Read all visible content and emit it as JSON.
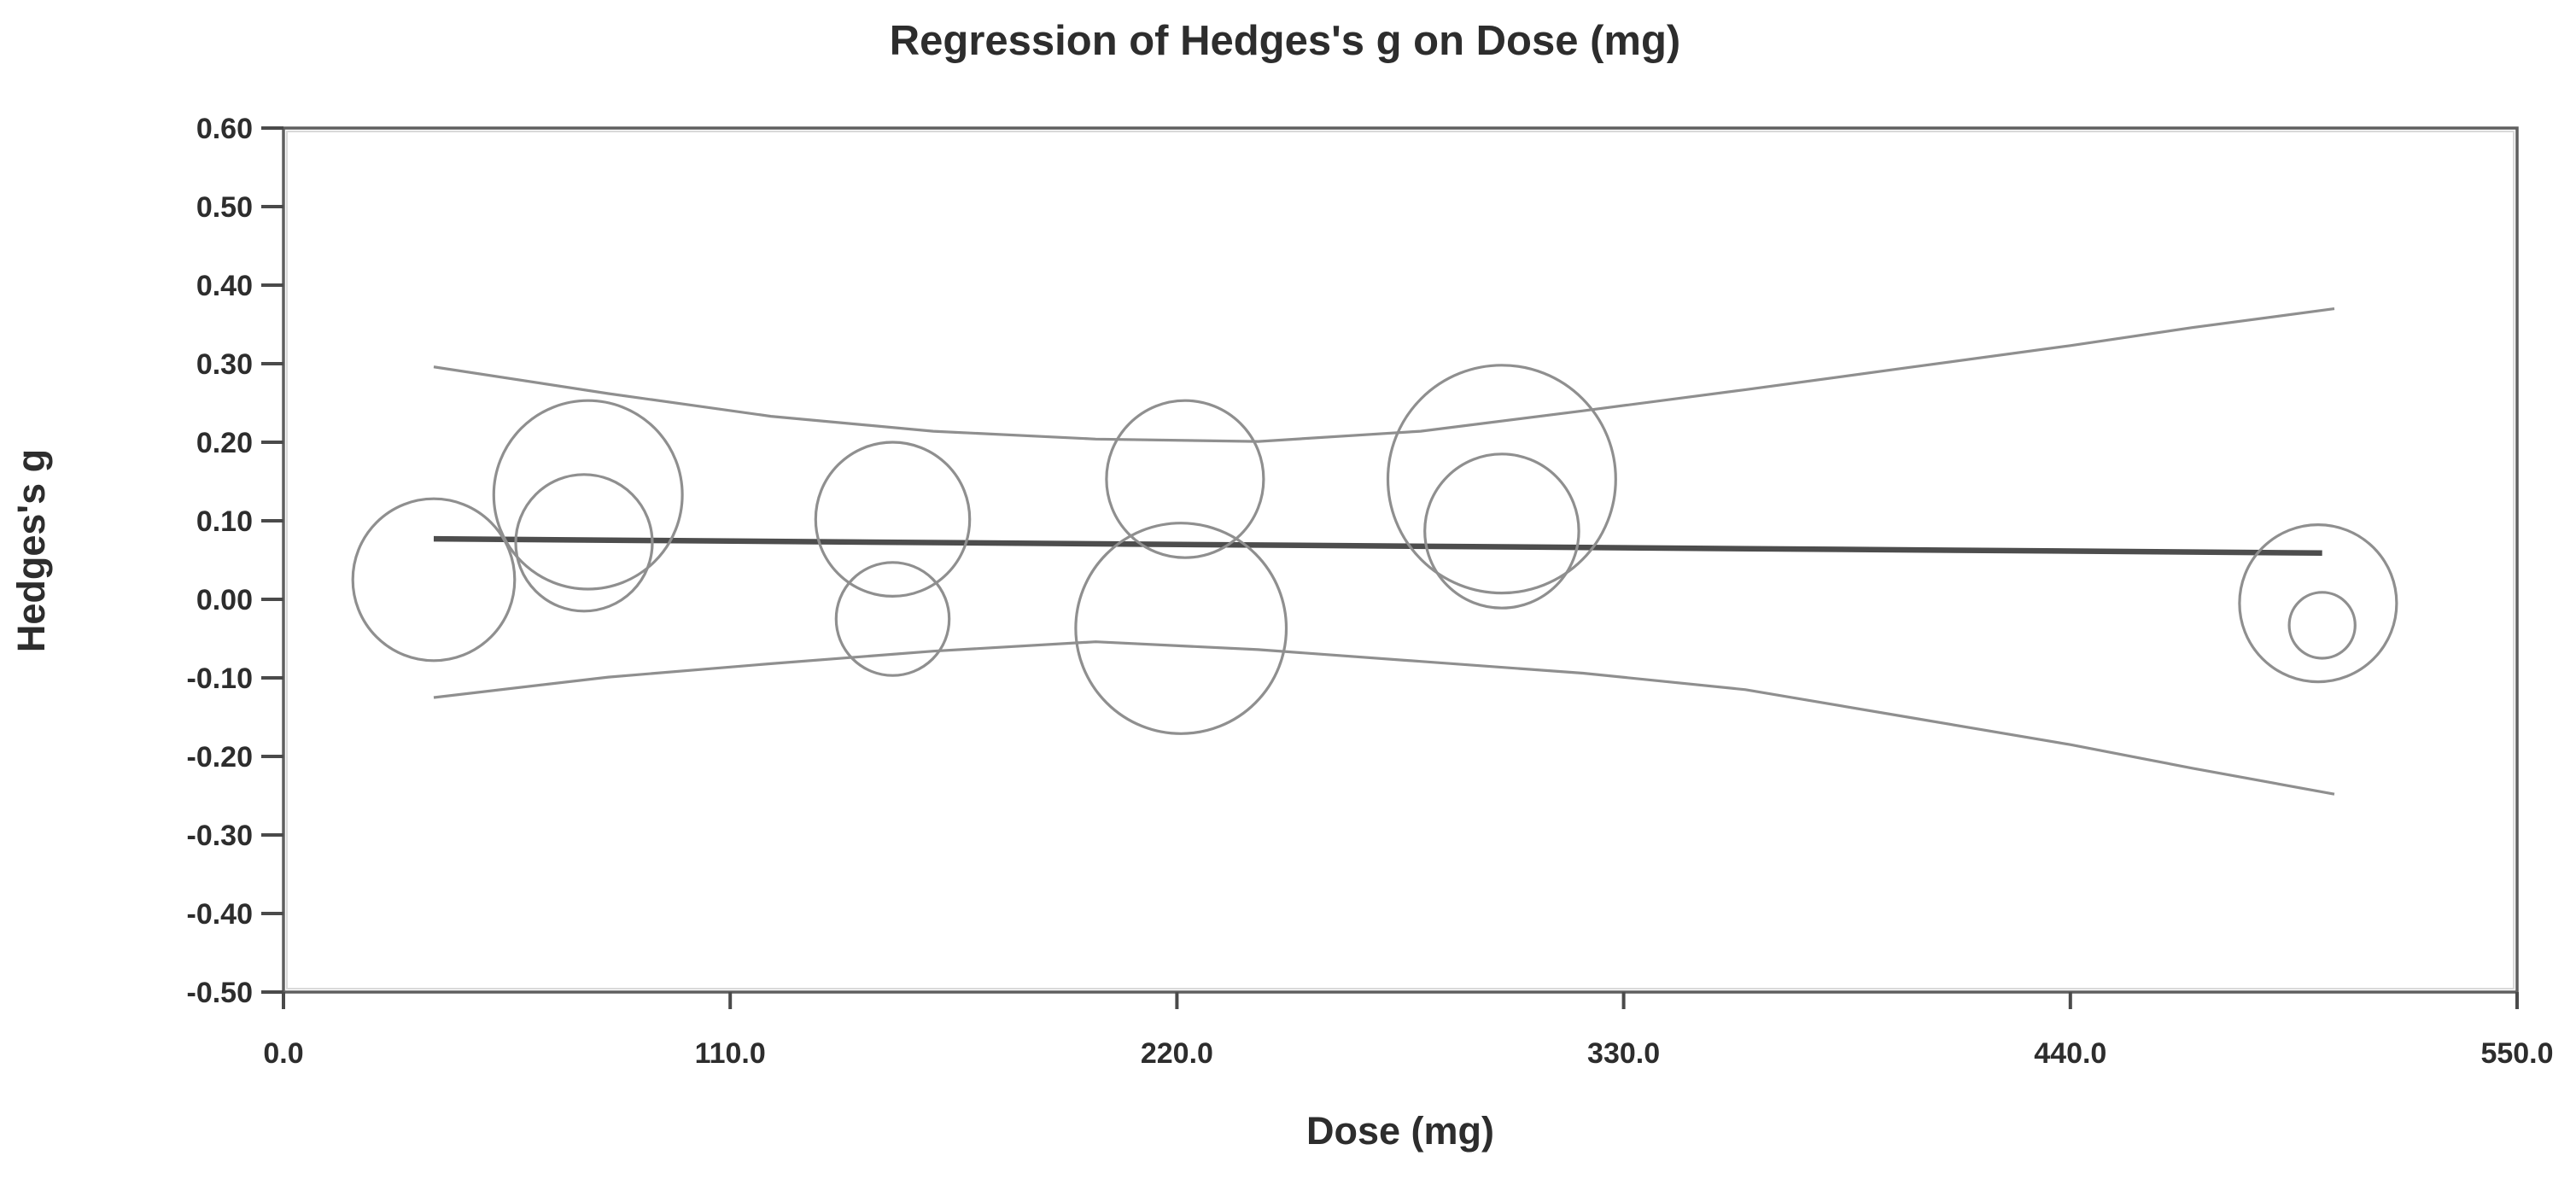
{
  "figure": {
    "background": "#ffffff"
  },
  "chart_data": {
    "type": "scatter",
    "subtype": "meta-regression-bubble-plot",
    "title": "Regression of Hedges's g on Dose (mg)",
    "xlabel": "Dose (mg)",
    "ylabel": "Hedges's g",
    "xlim": [
      0,
      550
    ],
    "ylim": [
      -0.5,
      0.6
    ],
    "grid": false,
    "legend": false,
    "x_ticks": [
      {
        "value": 0,
        "label": "0.0"
      },
      {
        "value": 110,
        "label": "110.0"
      },
      {
        "value": 220,
        "label": "220.0"
      },
      {
        "value": 330,
        "label": "330.0"
      },
      {
        "value": 440,
        "label": "440.0"
      },
      {
        "value": 550,
        "label": "550.0"
      }
    ],
    "y_ticks": [
      {
        "value": 0.6,
        "label": "0.60"
      },
      {
        "value": 0.5,
        "label": "0.50"
      },
      {
        "value": 0.4,
        "label": "0.40"
      },
      {
        "value": 0.3,
        "label": "0.30"
      },
      {
        "value": 0.2,
        "label": "0.20"
      },
      {
        "value": 0.1,
        "label": "0.10"
      },
      {
        "value": 0.0,
        "label": "0.00"
      },
      {
        "value": -0.1,
        "label": "-0.10"
      },
      {
        "value": -0.2,
        "label": "-0.20"
      },
      {
        "value": -0.3,
        "label": "-0.30"
      },
      {
        "value": -0.4,
        "label": "-0.40"
      },
      {
        "value": -0.5,
        "label": "-0.50"
      }
    ],
    "bubbles": [
      {
        "dose": 37,
        "g": 0.025,
        "radius_g": 0.103
      },
      {
        "dose": 75,
        "g": 0.133,
        "radius_g": 0.12
      },
      {
        "dose": 74,
        "g": 0.072,
        "radius_g": 0.087
      },
      {
        "dose": 150,
        "g": 0.102,
        "radius_g": 0.098
      },
      {
        "dose": 150,
        "g": -0.025,
        "radius_g": 0.072
      },
      {
        "dose": 222,
        "g": 0.153,
        "radius_g": 0.1
      },
      {
        "dose": 221,
        "g": -0.037,
        "radius_g": 0.134
      },
      {
        "dose": 300,
        "g": 0.153,
        "radius_g": 0.145
      },
      {
        "dose": 300,
        "g": 0.087,
        "radius_g": 0.098
      },
      {
        "dose": 501,
        "g": -0.005,
        "radius_g": 0.1
      },
      {
        "dose": 502,
        "g": -0.033,
        "radius_g": 0.042
      }
    ],
    "regression_line": {
      "x": [
        37,
        502
      ],
      "y": [
        0.077,
        0.059
      ]
    },
    "ci_upper": [
      [
        37,
        0.296
      ],
      [
        80,
        0.262
      ],
      [
        120,
        0.233
      ],
      [
        160,
        0.214
      ],
      [
        200,
        0.204
      ],
      [
        240,
        0.201
      ],
      [
        280,
        0.214
      ],
      [
        320,
        0.24
      ],
      [
        360,
        0.267
      ],
      [
        400,
        0.295
      ],
      [
        440,
        0.323
      ],
      [
        470,
        0.346
      ],
      [
        505,
        0.37
      ]
    ],
    "ci_lower": [
      [
        37,
        -0.125
      ],
      [
        80,
        -0.099
      ],
      [
        120,
        -0.082
      ],
      [
        160,
        -0.066
      ],
      [
        200,
        -0.054
      ],
      [
        240,
        -0.064
      ],
      [
        280,
        -0.079
      ],
      [
        320,
        -0.094
      ],
      [
        360,
        -0.115
      ],
      [
        400,
        -0.15
      ],
      [
        440,
        -0.185
      ],
      [
        470,
        -0.215
      ],
      [
        505,
        -0.248
      ]
    ],
    "colors": {
      "bubble_stroke": "#8f8f8f",
      "ci_line": "#8f8f8f",
      "regression_line": "#4d4d4d",
      "frame": "#5f5f5f",
      "frame_highlight": "#d9d9d9",
      "tick": "#4a4a4a",
      "text": "#2d2d2d"
    }
  }
}
